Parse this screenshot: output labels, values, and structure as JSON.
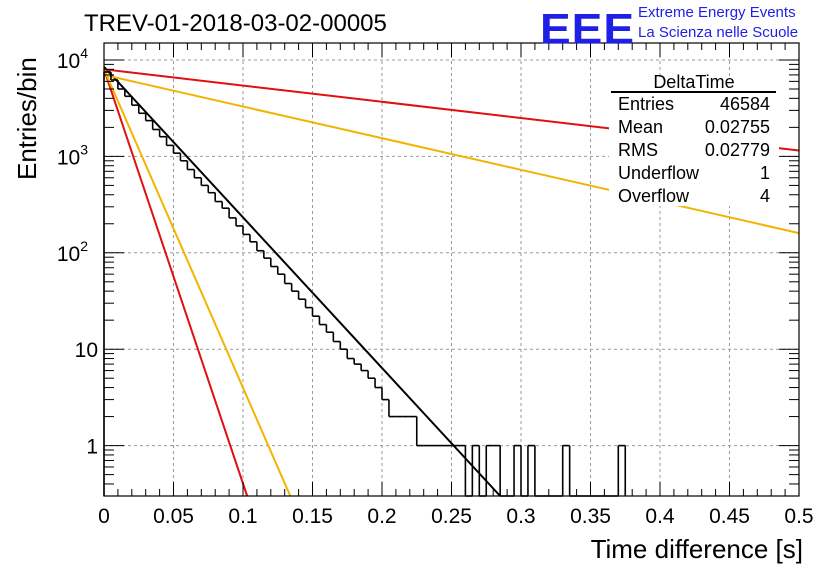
{
  "header": {
    "title": "TREV-01-2018-03-02-00005",
    "logo_letters": "EEE",
    "logo_line1": "Extreme Energy Events",
    "logo_line2": "La Scienza nelle Scuole"
  },
  "stats_box": {
    "name": "DeltaTime",
    "rows": [
      {
        "label": "Entries",
        "value": "46584"
      },
      {
        "label": "Mean",
        "value": "0.02755"
      },
      {
        "label": "RMS",
        "value": "0.02779"
      },
      {
        "label": "Underflow",
        "value": "1"
      },
      {
        "label": "Overflow",
        "value": "4"
      }
    ]
  },
  "chart_data": {
    "type": "line",
    "title": "TREV-01-2018-03-02-00005",
    "xlabel": "Time difference [s]",
    "ylabel": "Entries/bin",
    "xlim": [
      0,
      0.5
    ],
    "ylim": [
      0.3,
      15000
    ],
    "y_scale": "log",
    "grid": true,
    "x_ticks": [
      "0",
      "0.05",
      "0.1",
      "0.15",
      "0.2",
      "0.25",
      "0.3",
      "0.35",
      "0.4",
      "0.45",
      "0.5"
    ],
    "y_ticks": [
      {
        "value": 1,
        "label": "1"
      },
      {
        "value": 10,
        "label": "10"
      },
      {
        "value": 100,
        "label": "10^2"
      },
      {
        "value": 1000,
        "label": "10^3"
      },
      {
        "value": 10000,
        "label": "10^4"
      }
    ],
    "histogram": {
      "name": "DeltaTime",
      "bin_width": 0.005,
      "color": "#000000",
      "bins": [
        {
          "x": 0.0,
          "y": 7500
        },
        {
          "x": 0.005,
          "y": 6200
        },
        {
          "x": 0.01,
          "y": 5000
        },
        {
          "x": 0.015,
          "y": 4200
        },
        {
          "x": 0.02,
          "y": 3400
        },
        {
          "x": 0.025,
          "y": 2800
        },
        {
          "x": 0.03,
          "y": 2350
        },
        {
          "x": 0.035,
          "y": 1900
        },
        {
          "x": 0.04,
          "y": 1600
        },
        {
          "x": 0.045,
          "y": 1300
        },
        {
          "x": 0.05,
          "y": 1080
        },
        {
          "x": 0.055,
          "y": 900
        },
        {
          "x": 0.06,
          "y": 730
        },
        {
          "x": 0.065,
          "y": 600
        },
        {
          "x": 0.07,
          "y": 500
        },
        {
          "x": 0.075,
          "y": 420
        },
        {
          "x": 0.08,
          "y": 340
        },
        {
          "x": 0.085,
          "y": 290
        },
        {
          "x": 0.09,
          "y": 230
        },
        {
          "x": 0.095,
          "y": 190
        },
        {
          "x": 0.1,
          "y": 155
        },
        {
          "x": 0.105,
          "y": 130
        },
        {
          "x": 0.11,
          "y": 105
        },
        {
          "x": 0.115,
          "y": 88
        },
        {
          "x": 0.12,
          "y": 72
        },
        {
          "x": 0.125,
          "y": 60
        },
        {
          "x": 0.13,
          "y": 48
        },
        {
          "x": 0.135,
          "y": 40
        },
        {
          "x": 0.14,
          "y": 33
        },
        {
          "x": 0.145,
          "y": 27
        },
        {
          "x": 0.15,
          "y": 22
        },
        {
          "x": 0.155,
          "y": 18
        },
        {
          "x": 0.16,
          "y": 15
        },
        {
          "x": 0.165,
          "y": 12
        },
        {
          "x": 0.17,
          "y": 10
        },
        {
          "x": 0.175,
          "y": 8
        },
        {
          "x": 0.18,
          "y": 7
        },
        {
          "x": 0.185,
          "y": 6
        },
        {
          "x": 0.19,
          "y": 5
        },
        {
          "x": 0.195,
          "y": 4
        },
        {
          "x": 0.2,
          "y": 3
        },
        {
          "x": 0.205,
          "y": 2
        },
        {
          "x": 0.21,
          "y": 2
        },
        {
          "x": 0.215,
          "y": 2
        },
        {
          "x": 0.22,
          "y": 2
        },
        {
          "x": 0.225,
          "y": 1
        },
        {
          "x": 0.23,
          "y": 1
        },
        {
          "x": 0.235,
          "y": 1
        },
        {
          "x": 0.24,
          "y": 1
        },
        {
          "x": 0.245,
          "y": 1
        },
        {
          "x": 0.25,
          "y": 1
        },
        {
          "x": 0.255,
          "y": 1
        },
        {
          "x": 0.26,
          "y": 0
        },
        {
          "x": 0.265,
          "y": 1
        },
        {
          "x": 0.27,
          "y": 0
        },
        {
          "x": 0.275,
          "y": 1
        },
        {
          "x": 0.28,
          "y": 1
        },
        {
          "x": 0.285,
          "y": 0
        },
        {
          "x": 0.29,
          "y": 0
        },
        {
          "x": 0.295,
          "y": 1
        },
        {
          "x": 0.3,
          "y": 0
        },
        {
          "x": 0.305,
          "y": 1
        },
        {
          "x": 0.31,
          "y": 0
        },
        {
          "x": 0.315,
          "y": 0
        },
        {
          "x": 0.32,
          "y": 0
        },
        {
          "x": 0.325,
          "y": 0
        },
        {
          "x": 0.33,
          "y": 1
        },
        {
          "x": 0.335,
          "y": 0
        },
        {
          "x": 0.34,
          "y": 0
        },
        {
          "x": 0.345,
          "y": 0
        },
        {
          "x": 0.35,
          "y": 0
        },
        {
          "x": 0.355,
          "y": 0
        },
        {
          "x": 0.36,
          "y": 0
        },
        {
          "x": 0.365,
          "y": 0
        },
        {
          "x": 0.37,
          "y": 1
        }
      ]
    },
    "series": [
      {
        "color": "#000000",
        "points": [
          [
            0,
            8500
          ],
          [
            0.285,
            0.3
          ]
        ]
      },
      {
        "color": "#e01010",
        "points": [
          [
            0,
            8000
          ],
          [
            0.5,
            1150
          ]
        ]
      },
      {
        "color": "#f2b400",
        "points": [
          [
            0,
            7000
          ],
          [
            0.5,
            160
          ]
        ]
      },
      {
        "color": "#e01010",
        "points": [
          [
            0,
            8000
          ],
          [
            0.103,
            0.3
          ]
        ]
      },
      {
        "color": "#f2b400",
        "points": [
          [
            0,
            8000
          ],
          [
            0.134,
            0.3
          ]
        ]
      }
    ]
  }
}
